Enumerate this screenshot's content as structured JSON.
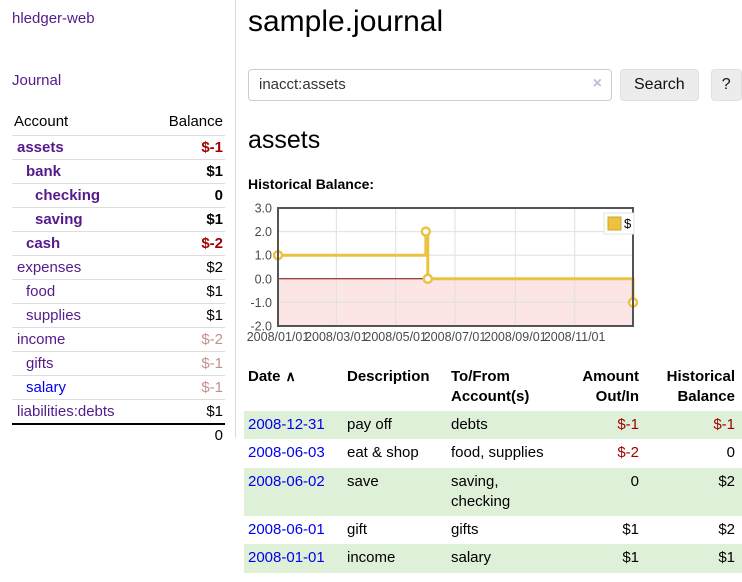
{
  "app": {
    "title": "hledger-web"
  },
  "colors": {
    "visited_link_purple": "#551a8b",
    "link_blue": "#0000ee",
    "negative_red": "#a40000",
    "dimmed_negative": "#c29090",
    "row_green": "#dff0d8",
    "series_yellow": "#edc240",
    "zero_line_red": "#7d0000",
    "negative_region_pink": "#fce5e5",
    "grid_gray": "#e0e0e0",
    "chart_border": "#545454"
  },
  "sidebar": {
    "journal_link": "Journal",
    "headers": {
      "account": "Account",
      "balance": "Balance"
    },
    "rows": [
      {
        "name": "assets",
        "balance": "$-1"
      },
      {
        "name": "bank",
        "balance": "$1"
      },
      {
        "name": "checking",
        "balance": "0"
      },
      {
        "name": "saving",
        "balance": "$1"
      },
      {
        "name": "cash",
        "balance": "$-2"
      },
      {
        "name": "expenses",
        "balance": "$2"
      },
      {
        "name": "food",
        "balance": "$1"
      },
      {
        "name": "supplies",
        "balance": "$1"
      },
      {
        "name": "income",
        "balance": "$-2"
      },
      {
        "name": "gifts",
        "balance": "$-1"
      },
      {
        "name": "salary",
        "balance": "$-1"
      },
      {
        "name": "liabilities:debts",
        "balance": "$1"
      }
    ],
    "total": "0"
  },
  "main": {
    "title": "sample.journal",
    "search": {
      "value": "inacct:assets",
      "placeholder": "",
      "clear_icon": "×",
      "search_label": "Search",
      "help_label": "?"
    },
    "account_heading": "assets",
    "section_label": "Historical Balance:"
  },
  "chart_data": {
    "type": "line",
    "title": "Historical Balance",
    "step": true,
    "series": [
      {
        "name": "$",
        "color": "#edc240",
        "points": [
          [
            "2008-01-01",
            1
          ],
          [
            "2008-06-01",
            2
          ],
          [
            "2008-06-02",
            2
          ],
          [
            "2008-06-03",
            0
          ],
          [
            "2008-12-31",
            -1
          ]
        ]
      }
    ],
    "x_ticks": [
      "2008/01/01",
      "2008/03/01",
      "2008/05/01",
      "2008/07/01",
      "2008/09/01",
      "2008/11/01"
    ],
    "y_ticks": [
      3.0,
      2.0,
      1.0,
      0.0,
      -1.0,
      -2.0
    ],
    "xlim": [
      "2008-01-01",
      "2008-12-31"
    ],
    "ylim": [
      -2,
      3
    ],
    "grid": true,
    "legend_position": "top-right",
    "legend_label": "$"
  },
  "register": {
    "headers": {
      "date": "Date",
      "sort_icon": "∧",
      "description": "Description",
      "accounts": "To/From\nAccount(s)",
      "amount": "Amount\nOut/In",
      "balance": "Historical\nBalance"
    },
    "rows": [
      {
        "date": "2008-12-31",
        "description": "pay off",
        "accounts": "debts",
        "amount": "$-1",
        "balance": "$-1"
      },
      {
        "date": "2008-06-03",
        "description": "eat & shop",
        "accounts": "food, supplies",
        "amount": "$-2",
        "balance": "0"
      },
      {
        "date": "2008-06-02",
        "description": "save",
        "accounts": "saving,\nchecking",
        "amount": "0",
        "balance": "$2"
      },
      {
        "date": "2008-06-01",
        "description": "gift",
        "accounts": "gifts",
        "amount": "$1",
        "balance": "$2"
      },
      {
        "date": "2008-01-01",
        "description": "income",
        "accounts": "salary",
        "amount": "$1",
        "balance": "$1"
      }
    ]
  }
}
